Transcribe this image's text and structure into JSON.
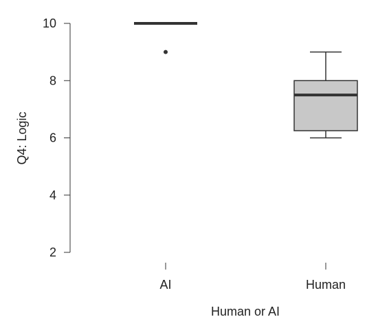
{
  "chart_data": {
    "type": "boxplot",
    "xlabel": "Human or AI",
    "ylabel": "Q4: Logic",
    "yticks": [
      2,
      4,
      6,
      8,
      10
    ],
    "ylim": [
      2,
      10
    ],
    "categories": [
      "AI",
      "Human"
    ],
    "boxes": [
      {
        "category": "AI",
        "min": 10,
        "q1": 10,
        "median": 10,
        "q3": 10,
        "max": 10,
        "outliers": [
          9
        ]
      },
      {
        "category": "Human",
        "min": 6,
        "q1": 6.25,
        "median": 7.5,
        "q3": 8,
        "max": 9,
        "outliers": []
      }
    ],
    "colors": {
      "box_fill": "#c8c8c8",
      "stroke": "#333333"
    }
  }
}
